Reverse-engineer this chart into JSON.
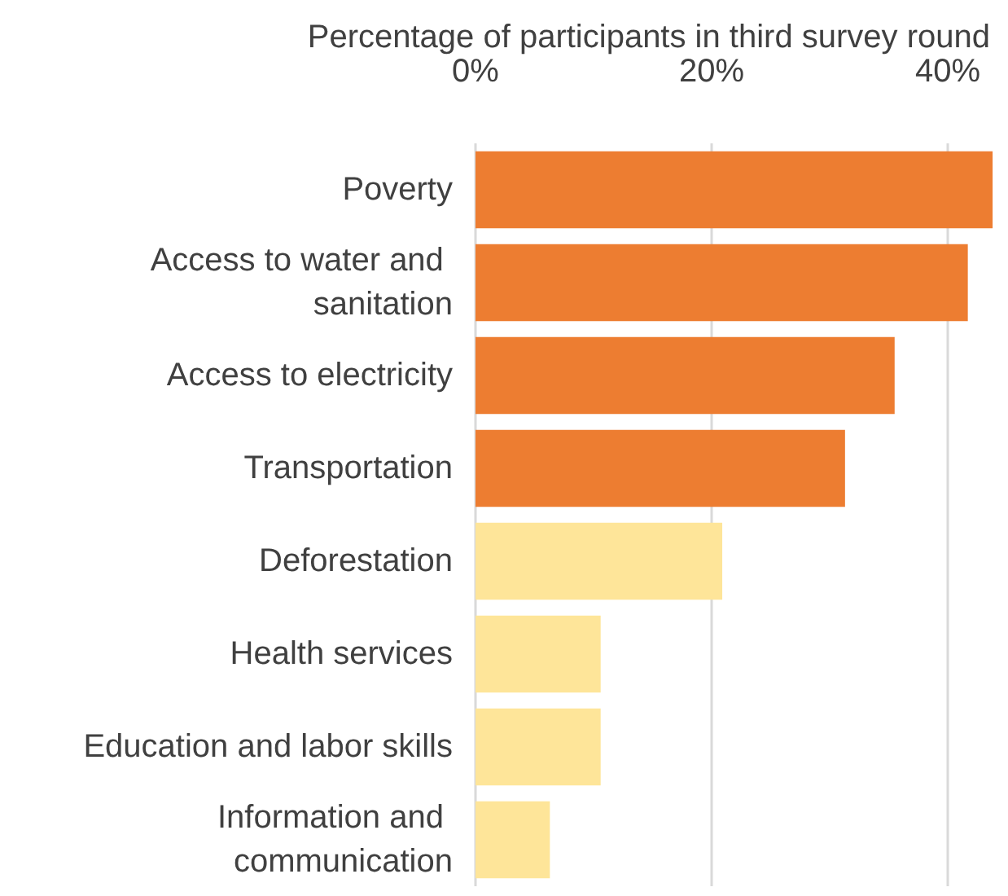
{
  "chart_data": {
    "type": "bar",
    "orientation": "horizontal",
    "xlabel": "Percentage of participants in third survey round",
    "categories": [
      "Poverty",
      "Access to water and sanitation",
      "Access to electricity",
      "Transportation",
      "Deforestation",
      "Health services",
      "Education and labor skills",
      "Information and communication"
    ],
    "values": [
      43.8,
      41.7,
      35.5,
      31.3,
      20.9,
      10.6,
      10.6,
      6.3
    ],
    "colors": [
      "#ed7d31",
      "#ed7d31",
      "#ed7d31",
      "#ed7d31",
      "#fee599",
      "#fee599",
      "#fee599",
      "#fee599"
    ],
    "xlim": [
      0,
      44
    ],
    "xticks": [
      {
        "value": 0,
        "label": "0%"
      },
      {
        "value": 20,
        "label": "20%"
      },
      {
        "value": 40,
        "label": "40%"
      }
    ],
    "grid": "x"
  }
}
